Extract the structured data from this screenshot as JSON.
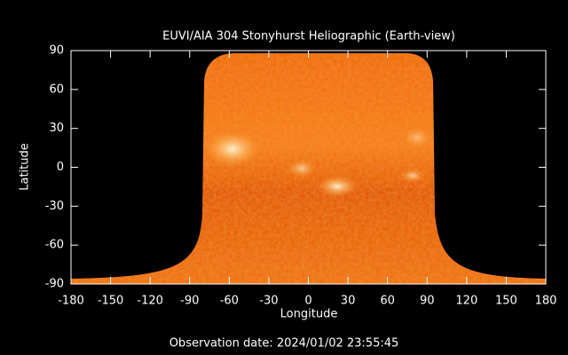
{
  "chart_data": {
    "type": "image",
    "title": "EUVI/AIA 304 Stonyhurst Heliographic (Earth-view)",
    "xlabel": "Longitude",
    "ylabel": "Latitude",
    "annotation": "Observation date: 2024/01/02 23:55:45",
    "xlim": [
      -180,
      180
    ],
    "ylim": [
      -90,
      90
    ],
    "xticks": [
      -180,
      -150,
      -120,
      -90,
      -60,
      -30,
      0,
      30,
      60,
      90,
      120,
      150,
      180
    ],
    "yticks": [
      -90,
      -60,
      -30,
      0,
      30,
      60,
      90
    ]
  }
}
